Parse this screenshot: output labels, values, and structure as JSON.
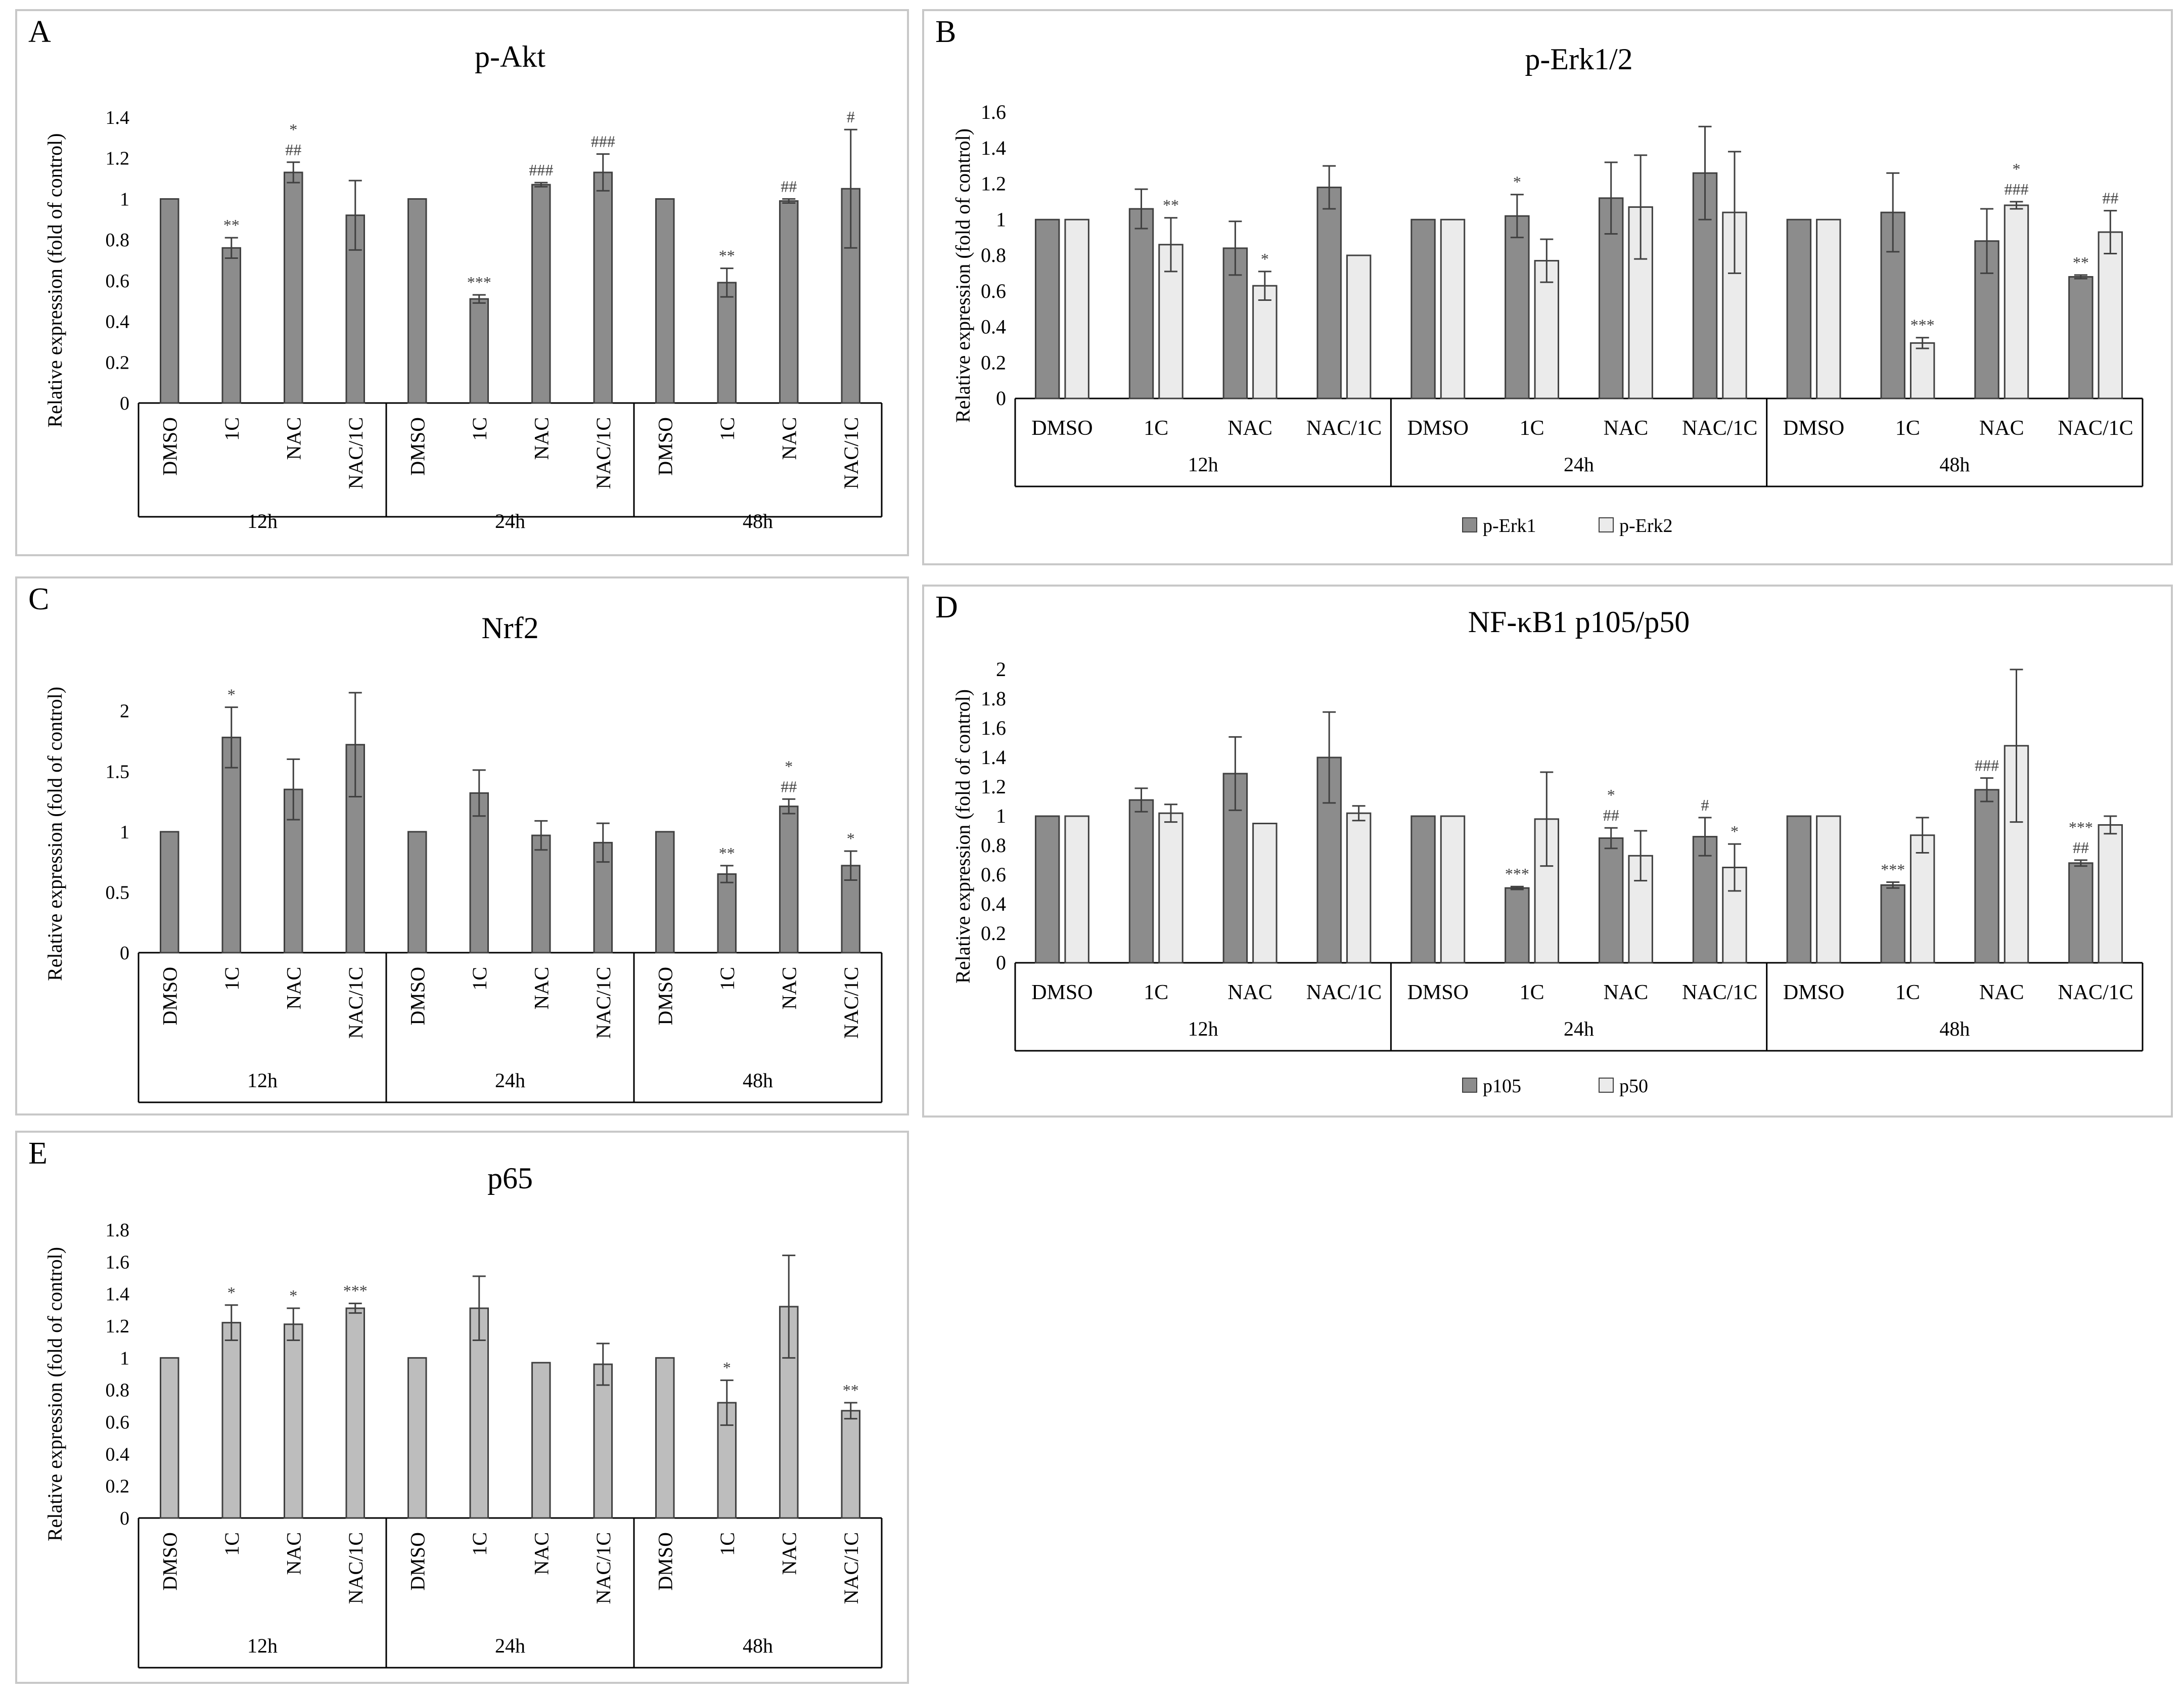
{
  "colors": {
    "dark_bar": "#8c8c8c",
    "light_bar": "#ebebeb",
    "single_bar": "#bdbdbd",
    "outline": "#404040",
    "border": "#c8c8c8"
  },
  "chart_data": [
    {
      "id": "A",
      "panel_label": "A",
      "type": "bar",
      "title": "p-Akt",
      "ylabel": "Relative expression (fold of control)",
      "ylim": [
        0,
        1.4
      ],
      "yticks": [
        0,
        0.2,
        0.4,
        0.6,
        0.8,
        1,
        1.2,
        1.4
      ],
      "categories": [
        "DMSO",
        "1C",
        "NAC",
        "NAC/1C",
        "DMSO",
        "1C",
        "NAC",
        "NAC/1C",
        "DMSO",
        "1C",
        "NAC",
        "NAC/1C"
      ],
      "groups": [
        "12h",
        "24h",
        "48h"
      ],
      "series": [
        {
          "name": "p-Akt",
          "values": [
            1.0,
            0.76,
            1.13,
            0.92,
            1.0,
            0.51,
            1.07,
            1.13,
            1.0,
            0.59,
            0.99,
            1.05
          ],
          "errors": [
            0,
            0.05,
            0.05,
            0.17,
            0,
            0.02,
            0.01,
            0.09,
            0,
            0.07,
            0.01,
            0.29
          ],
          "annotations": [
            [],
            [
              "**"
            ],
            [
              "*",
              "##"
            ],
            [],
            [],
            [
              "***"
            ],
            [
              "###"
            ],
            [
              "###"
            ],
            [],
            [
              "**"
            ],
            [
              "##"
            ],
            [
              "#"
            ]
          ]
        }
      ]
    },
    {
      "id": "B",
      "panel_label": "B",
      "type": "bar",
      "title": "p-Erk1/2",
      "ylabel": "Relative expression (fold of control)",
      "ylim": [
        0,
        1.6
      ],
      "yticks": [
        0,
        0.2,
        0.4,
        0.6,
        0.8,
        1,
        1.2,
        1.4,
        1.6
      ],
      "categories": [
        "DMSO",
        "1C",
        "NAC",
        "NAC/1C",
        "DMSO",
        "1C",
        "NAC",
        "NAC/1C",
        "DMSO",
        "1C",
        "NAC",
        "NAC/1C"
      ],
      "groups": [
        "12h",
        "24h",
        "48h"
      ],
      "legend_position": "bottom",
      "series": [
        {
          "name": "p-Erk1",
          "values": [
            1.0,
            1.06,
            0.84,
            1.18,
            1.0,
            1.02,
            1.12,
            1.26,
            1.0,
            1.04,
            0.88,
            0.68
          ],
          "errors": [
            0,
            0.11,
            0.15,
            0.12,
            0,
            0.12,
            0.2,
            0.26,
            0,
            0.22,
            0.18,
            0.01
          ],
          "annotations": [
            [],
            [],
            [],
            [],
            [],
            [
              "*"
            ],
            [],
            [],
            [],
            [],
            [],
            [
              "**"
            ]
          ]
        },
        {
          "name": "p-Erk2",
          "values": [
            1.0,
            0.86,
            0.63,
            0.8,
            1.0,
            0.77,
            1.07,
            1.04,
            1.0,
            0.31,
            1.08,
            0.93
          ],
          "errors": [
            0,
            0.15,
            0.08,
            0,
            0,
            0.12,
            0.29,
            0.34,
            0,
            0.03,
            0.02,
            0.12
          ],
          "annotations": [
            [],
            [
              "**"
            ],
            [
              "*"
            ],
            [],
            [],
            [],
            [],
            [],
            [],
            [
              "***"
            ],
            [
              "*",
              "###"
            ],
            [
              "##"
            ]
          ]
        }
      ]
    },
    {
      "id": "C",
      "panel_label": "C",
      "type": "bar",
      "title": "Nrf2",
      "ylabel": "Relative expression (fold of control)",
      "ylim": [
        0,
        2.3
      ],
      "yticks": [
        0,
        0.5,
        1,
        1.5,
        2
      ],
      "categories": [
        "DMSO",
        "1C",
        "NAC",
        "NAC/1C",
        "DMSO",
        "1C",
        "NAC",
        "NAC/1C",
        "DMSO",
        "1C",
        "NAC",
        "NAC/1C"
      ],
      "groups": [
        "12h",
        "24h",
        "48h"
      ],
      "series": [
        {
          "name": "Nrf2",
          "values": [
            1.0,
            1.78,
            1.35,
            1.72,
            1.0,
            1.32,
            0.97,
            0.91,
            1.0,
            0.65,
            1.21,
            0.72
          ],
          "errors": [
            0,
            0.25,
            0.25,
            0.43,
            0,
            0.19,
            0.12,
            0.16,
            0,
            0.07,
            0.06,
            0.12
          ],
          "annotations": [
            [],
            [
              "*"
            ],
            [],
            [],
            [],
            [],
            [],
            [],
            [],
            [
              "**"
            ],
            [
              "*",
              "##"
            ],
            [
              "*"
            ]
          ]
        }
      ]
    },
    {
      "id": "D",
      "panel_label": "D",
      "type": "bar",
      "title": "NF-κB1 p105/p50",
      "ylabel": "Relative expression (fold of control)",
      "ylim": [
        0,
        2.0
      ],
      "yticks": [
        0,
        0.2,
        0.4,
        0.6,
        0.8,
        1,
        1.2,
        1.4,
        1.6,
        1.8,
        2
      ],
      "categories": [
        "DMSO",
        "1C",
        "NAC",
        "NAC/1C",
        "DMSO",
        "1C",
        "NAC",
        "NAC/1C",
        "DMSO",
        "1C",
        "NAC",
        "NAC/1C"
      ],
      "groups": [
        "12h",
        "24h",
        "48h"
      ],
      "legend_position": "bottom",
      "series": [
        {
          "name": "p105",
          "values": [
            1.0,
            1.11,
            1.29,
            1.4,
            1.0,
            0.51,
            0.85,
            0.86,
            1.0,
            0.53,
            1.18,
            0.68
          ],
          "errors": [
            0,
            0.08,
            0.25,
            0.31,
            0,
            0.01,
            0.07,
            0.13,
            0,
            0.02,
            0.08,
            0.02
          ],
          "annotations": [
            [],
            [],
            [],
            [],
            [],
            [
              "***"
            ],
            [
              "*",
              "##"
            ],
            [
              "#"
            ],
            [],
            [
              "***"
            ],
            [
              "###"
            ],
            [
              "***",
              "##"
            ]
          ]
        },
        {
          "name": "p50",
          "values": [
            1.0,
            1.02,
            0.95,
            1.02,
            1.0,
            0.98,
            0.73,
            0.65,
            1.0,
            0.87,
            1.48,
            0.94
          ],
          "errors": [
            0,
            0.06,
            0,
            0.05,
            0,
            0.32,
            0.17,
            0.16,
            0,
            0.12,
            0.52,
            0.06
          ],
          "annotations": [
            [],
            [],
            [],
            [],
            [],
            [],
            [],
            [
              "*"
            ],
            [],
            [],
            [],
            []
          ]
        }
      ]
    },
    {
      "id": "E",
      "panel_label": "E",
      "type": "bar",
      "title": "p65",
      "ylabel": "Relative expression (fold of control)",
      "ylim": [
        0,
        1.8
      ],
      "yticks": [
        0,
        0.2,
        0.4,
        0.6,
        0.8,
        1,
        1.2,
        1.4,
        1.6,
        1.8
      ],
      "categories": [
        "DMSO",
        "1C",
        "NAC",
        "NAC/1C",
        "DMSO",
        "1C",
        "NAC",
        "NAC/1C",
        "DMSO",
        "1C",
        "NAC",
        "NAC/1C"
      ],
      "groups": [
        "12h",
        "24h",
        "48h"
      ],
      "series": [
        {
          "name": "p65",
          "values": [
            1.0,
            1.22,
            1.21,
            1.31,
            1.0,
            1.31,
            0.97,
            0.96,
            1.0,
            0.72,
            1.32,
            0.67
          ],
          "errors": [
            0,
            0.11,
            0.1,
            0.03,
            0,
            0.2,
            0,
            0.13,
            0,
            0.14,
            0.32,
            0.05
          ],
          "annotations": [
            [],
            [
              "*"
            ],
            [
              "*"
            ],
            [
              "***"
            ],
            [],
            [],
            [],
            [],
            [],
            [
              "*"
            ],
            [],
            [
              "**"
            ]
          ]
        }
      ]
    }
  ]
}
